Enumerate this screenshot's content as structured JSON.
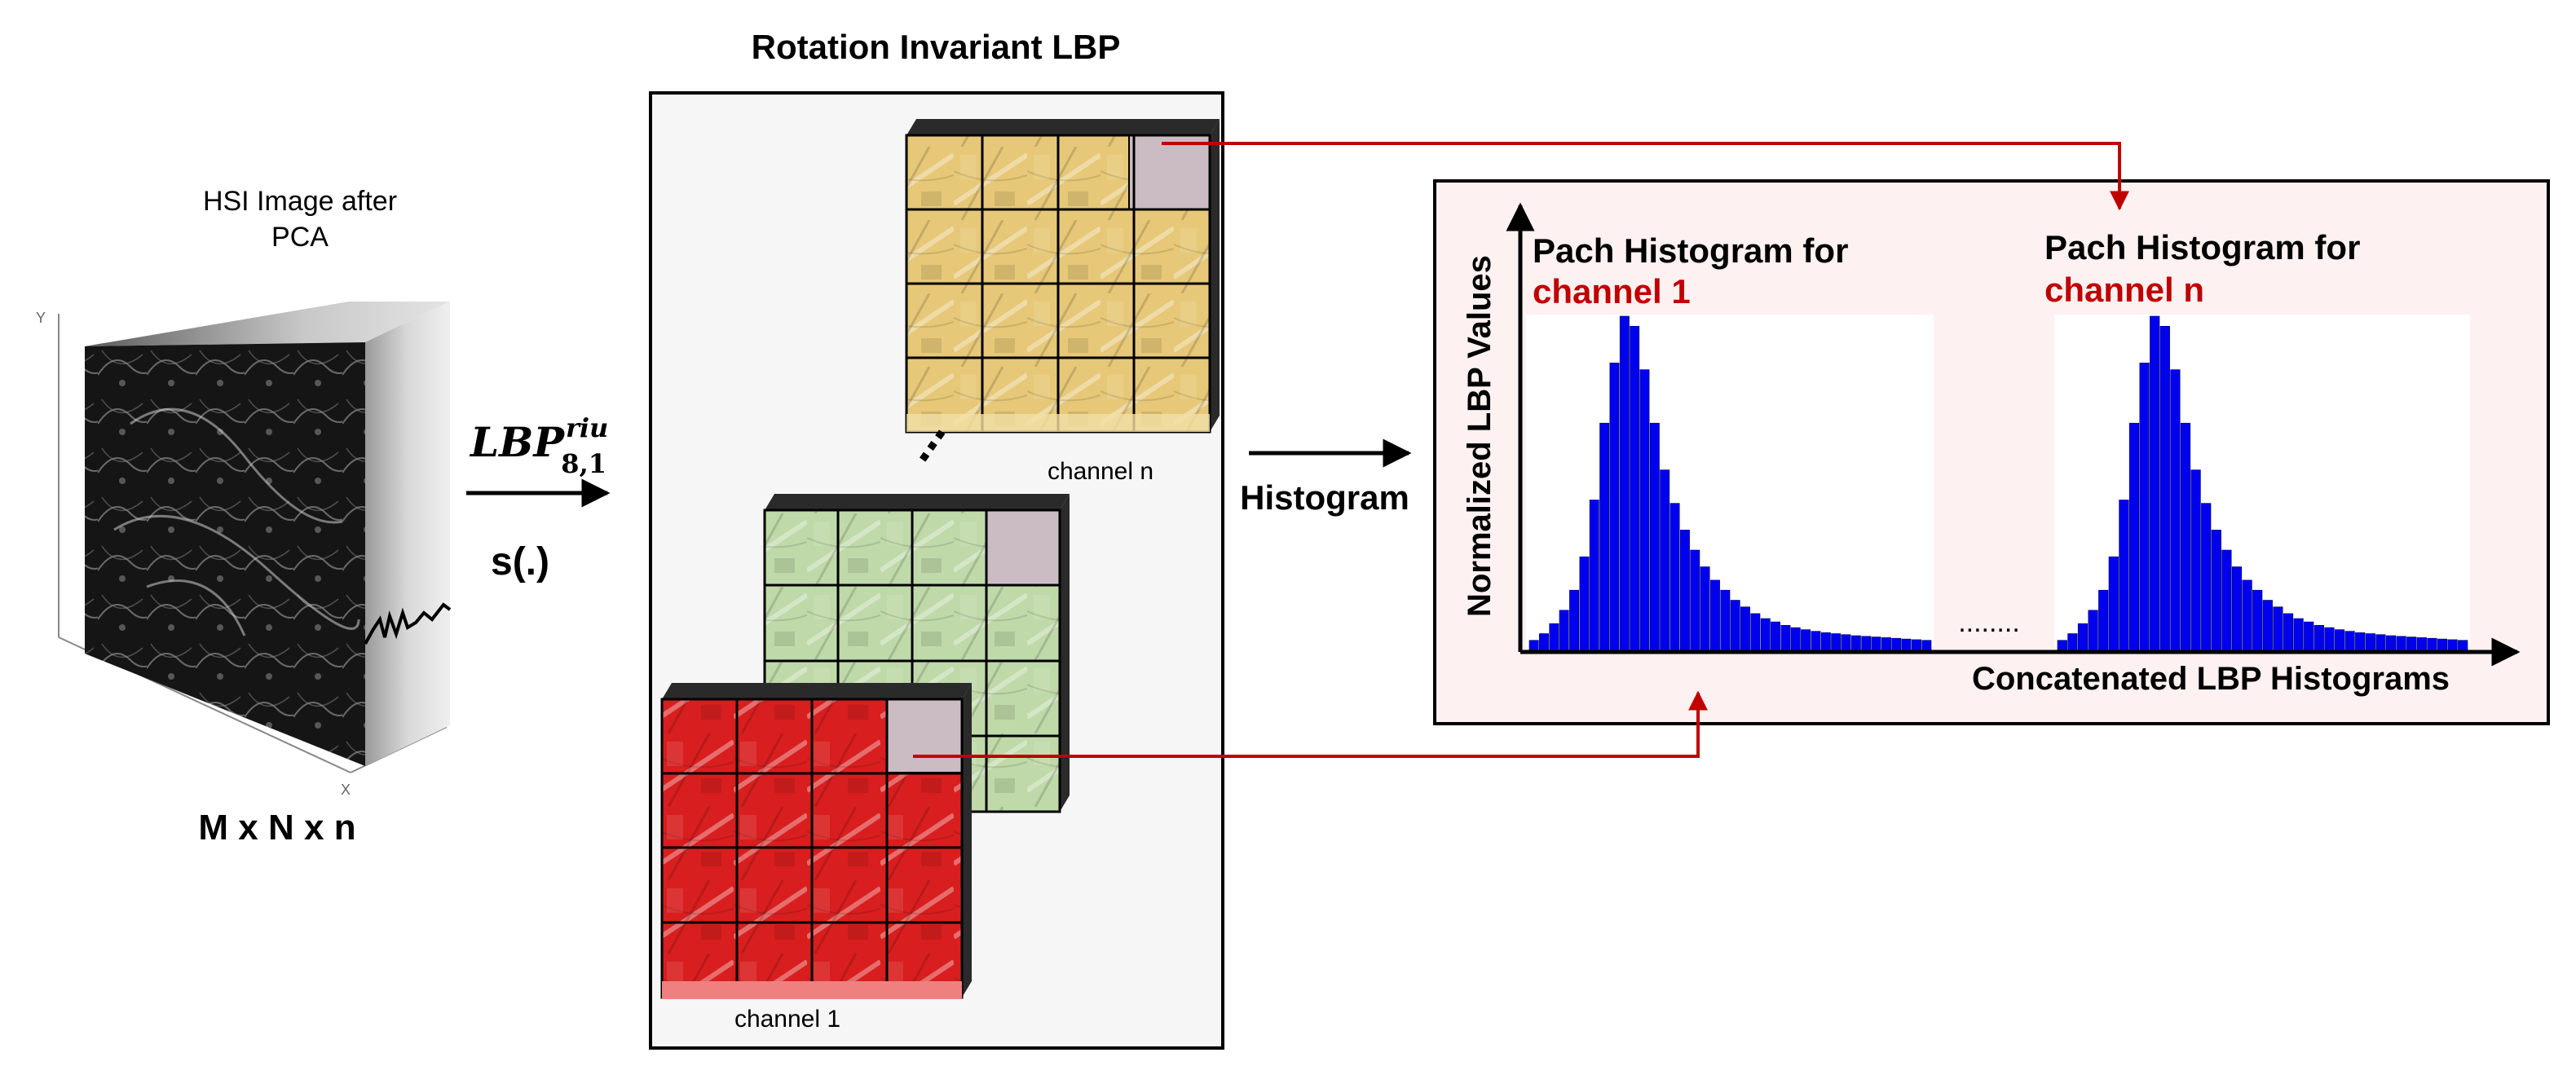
{
  "hsi": {
    "title_line1": "HSI Image after",
    "title_line2": "PCA",
    "dims": "M x N x n",
    "axis_y": "Y",
    "axis_x": "X"
  },
  "operator": {
    "base": "LBP",
    "superscript": "riu",
    "subscript": "8,1",
    "function": "s(.)"
  },
  "lbp_panel": {
    "title": "Rotation Invariant LBP",
    "channel_n_label": "channel n",
    "channel_1_label": "channel 1",
    "ellipsis": "..."
  },
  "histogram_step": {
    "label": "Histogram"
  },
  "histogram_panel": {
    "y_axis_label": "Normalized LBP Values",
    "x_axis_label": "Concatenated LBP Histograms",
    "hist1_title": "Pach Histogram for",
    "hist1_channel": "channel 1",
    "histn_title": "Pach Histogram for",
    "histn_channel": "channel n",
    "separator": "........"
  },
  "colors": {
    "accent_red": "#c00000",
    "bar_blue": "#0000ee",
    "panel_bg": "#fdf1f1",
    "lbp_bg": "#f6f6f6",
    "tint_yellow": "#e3c57a",
    "tint_green": "#bcd8a8",
    "tint_red": "#d61f1f"
  },
  "chart_data": [
    {
      "type": "bar",
      "title": "Pach Histogram for channel 1",
      "xlabel": "Concatenated LBP Histograms",
      "ylabel": "Normalized LBP Values",
      "values": [
        0.03,
        0.05,
        0.08,
        0.12,
        0.18,
        0.28,
        0.45,
        0.68,
        0.86,
        1.0,
        0.97,
        0.84,
        0.68,
        0.54,
        0.44,
        0.36,
        0.3,
        0.25,
        0.21,
        0.18,
        0.15,
        0.13,
        0.11,
        0.095,
        0.085,
        0.075,
        0.068,
        0.062,
        0.057,
        0.053,
        0.05,
        0.047,
        0.044,
        0.042,
        0.04,
        0.038,
        0.036,
        0.034,
        0.032,
        0.03
      ]
    },
    {
      "type": "bar",
      "title": "Pach Histogram for channel n",
      "xlabel": "Concatenated LBP Histograms",
      "ylabel": "Normalized LBP Values",
      "values": [
        0.03,
        0.05,
        0.08,
        0.12,
        0.18,
        0.28,
        0.45,
        0.68,
        0.86,
        1.0,
        0.97,
        0.84,
        0.68,
        0.54,
        0.44,
        0.36,
        0.3,
        0.25,
        0.21,
        0.18,
        0.15,
        0.13,
        0.11,
        0.095,
        0.085,
        0.075,
        0.068,
        0.062,
        0.057,
        0.053,
        0.05,
        0.047,
        0.044,
        0.042,
        0.04,
        0.038,
        0.036,
        0.034,
        0.032,
        0.03
      ]
    }
  ]
}
